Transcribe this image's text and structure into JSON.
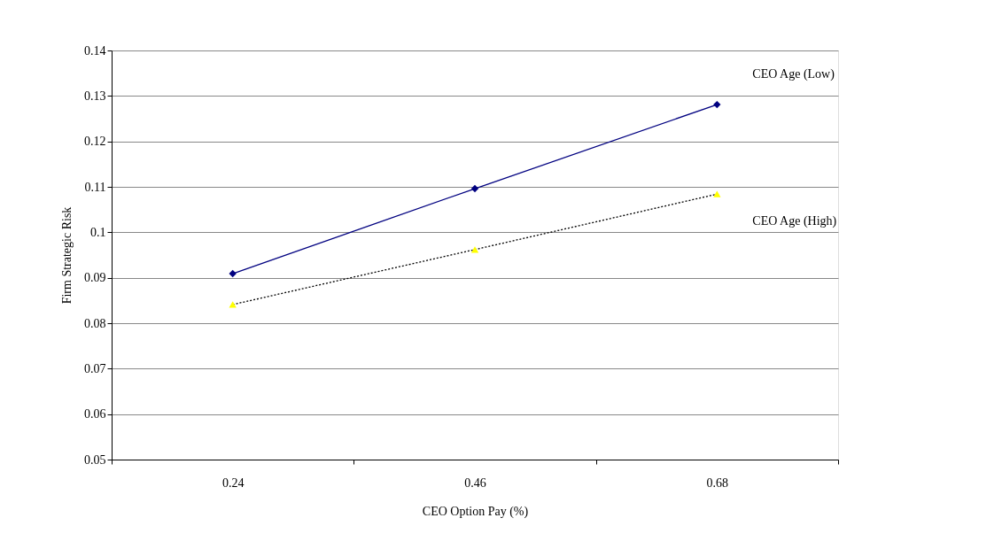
{
  "chart_data": {
    "type": "line",
    "xlabel": "CEO Option Pay (%)",
    "ylabel": "Firm Strategic Risk",
    "categories": [
      "0.24",
      "0.46",
      "0.68"
    ],
    "ylim": [
      0.05,
      0.14
    ],
    "yticks": [
      0.05,
      0.06,
      0.07,
      0.08,
      0.09,
      0.1,
      0.11,
      0.12,
      0.13,
      0.14
    ],
    "grid": "y",
    "series": [
      {
        "name": "CEO Age  (Low)",
        "color": "#000080",
        "marker": "diamond",
        "line_style": "solid",
        "values": [
          0.0909,
          0.1096,
          0.1281
        ]
      },
      {
        "name": "CEO Age  (High)",
        "color": "#ffff00",
        "marker": "triangle",
        "line_style": "dotted",
        "values": [
          0.0841,
          0.0962,
          0.1084
        ]
      }
    ]
  }
}
